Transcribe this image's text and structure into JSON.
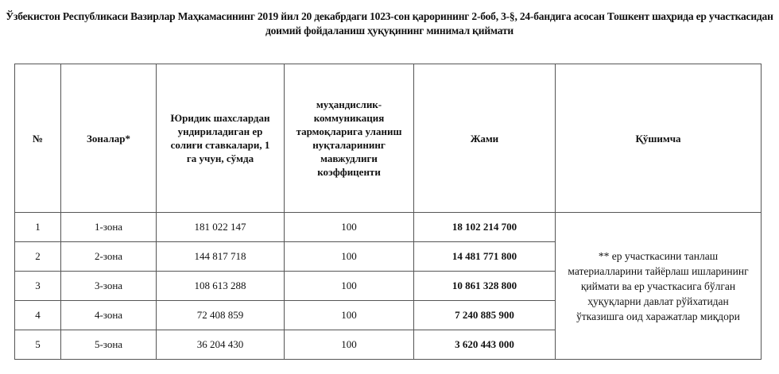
{
  "title": "Ўзбекистон Республикаси Вазирлар Маҳкамасининг 2019 йил 20 декабрдаги 1023-сон қарорининг 2-боб, 3-§, 24-бандига асосан Тошкент шаҳрида ер участкасидан доимий фойдаланиш ҳуқуқининг минимал қиймати",
  "headers": [
    "№",
    "Зоналар*",
    "Юридик шахслардан ундириладиган ер солиғи ставкалари, 1 га учун, сўмда",
    "муҳандислик-коммуникация тармоқларига уланиш нуқталарининг мавжудлиги коэффиценти",
    "Жами",
    "Қўшимча"
  ],
  "rows": [
    {
      "num": "1",
      "zone": "1-зона",
      "rate": "181 022 147",
      "coef": "100",
      "total": "18 102 214 700"
    },
    {
      "num": "2",
      "zone": "2-зона",
      "rate": "144 817 718",
      "coef": "100",
      "total": "14 481 771 800"
    },
    {
      "num": "3",
      "zone": "3-зона",
      "rate": "108 613 288",
      "coef": "100",
      "total": "10 861 328 800"
    },
    {
      "num": "4",
      "zone": "4-зона",
      "rate": "72 408 859",
      "coef": "100",
      "total": "7 240 885 900"
    },
    {
      "num": "5",
      "zone": "5-зона",
      "rate": "36 204 430",
      "coef": "100",
      "total": "3 620 443 000"
    }
  ],
  "note": "** ер участкасини танлаш материалларини тайёрлаш ишларининг қиймати ва ер участкасига бўлган ҳуқуқларни давлат рўйхатидан ўтказишга оид харажатлар миқдори"
}
